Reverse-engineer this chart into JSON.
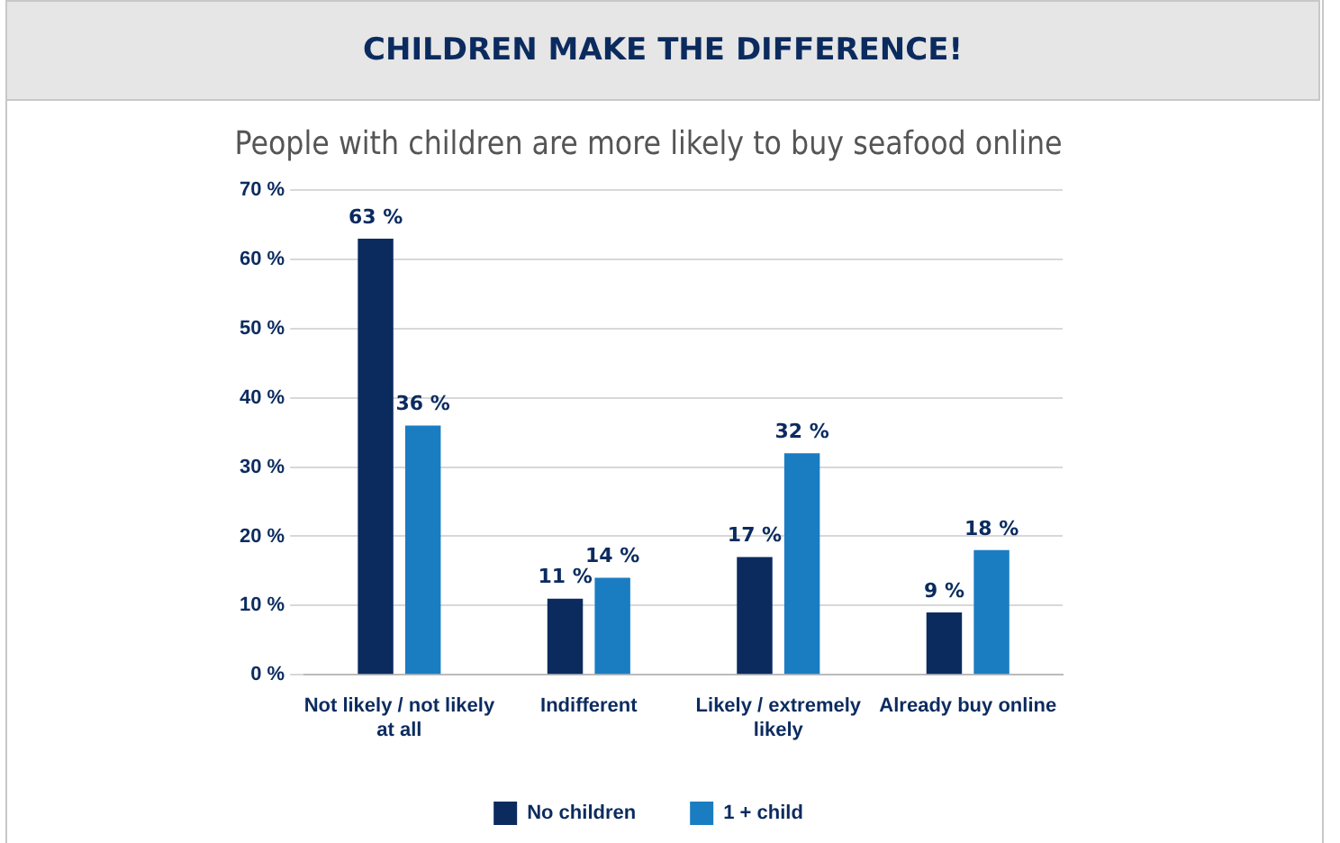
{
  "chart_data": {
    "type": "bar",
    "title": "CHILDREN MAKE THE DIFFERENCE!",
    "subtitle": "People with children are more likely to buy seafood online",
    "categories": [
      "Not likely / not likely at all",
      "Indifferent",
      "Likely / extremely likely",
      "Already buy online"
    ],
    "series": [
      {
        "name": "No children",
        "color": "#0b2b5f",
        "values": [
          63,
          11,
          17,
          9
        ],
        "value_labels": [
          "63 %",
          "11 %",
          "17 %",
          "9 %"
        ]
      },
      {
        "name": "1 + child",
        "color": "#1a7dc2",
        "values": [
          36,
          14,
          32,
          18
        ],
        "value_labels": [
          "36 %",
          "14 %",
          "32 %",
          "18 %"
        ]
      }
    ],
    "ylim": [
      0,
      70
    ],
    "yticks": [
      {
        "value": 0,
        "label": "0 %"
      },
      {
        "value": 10,
        "label": "10 %"
      },
      {
        "value": 20,
        "label": "20 %"
      },
      {
        "value": 30,
        "label": "30 %"
      },
      {
        "value": 40,
        "label": "40 %"
      },
      {
        "value": 50,
        "label": "50 %"
      },
      {
        "value": 60,
        "label": "60 %"
      },
      {
        "value": 70,
        "label": "70 %"
      }
    ],
    "grid": "y",
    "legend": "bottom"
  }
}
